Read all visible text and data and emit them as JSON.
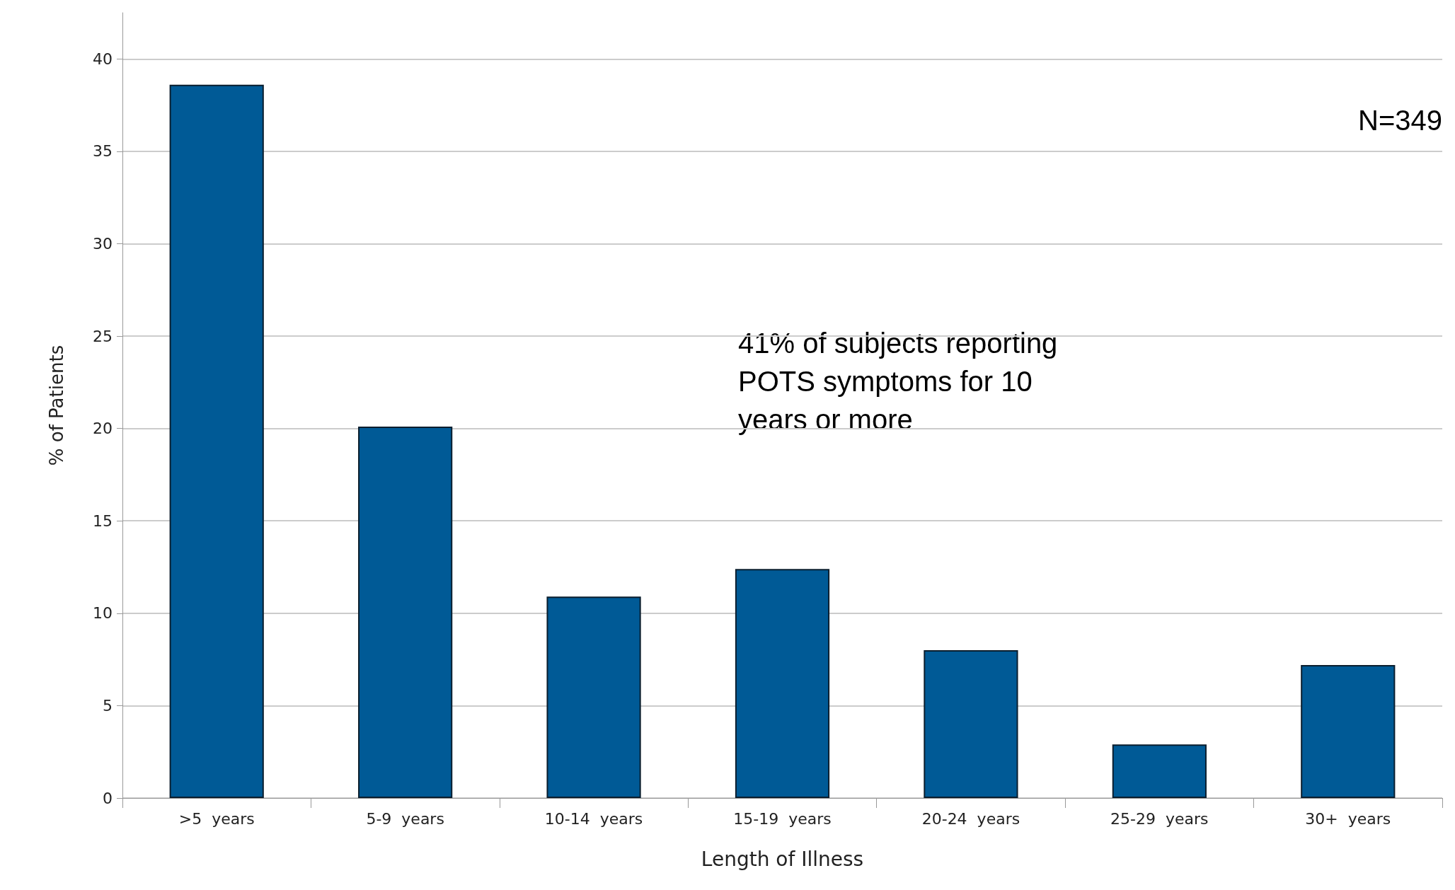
{
  "chart_data": {
    "type": "bar",
    "xlabel": "Length of Illness",
    "ylabel": "% of Patients",
    "categories": [
      ">5  years",
      "5-9  years",
      "10-14  years",
      "15-19  years",
      "20-24  years",
      "25-29  years",
      "30+  years"
    ],
    "values": [
      38.6,
      20.1,
      10.9,
      12.4,
      8.0,
      2.9,
      7.2
    ],
    "color": "#005a96",
    "ylim": [
      0,
      42.5
    ],
    "yticks": [
      0,
      5,
      10,
      15,
      20,
      25,
      30,
      35,
      40
    ],
    "grid": "y",
    "annotations": [
      "N=349",
      "41% of subjects reporting\nPOTS symptoms for 10\nyears or more"
    ]
  }
}
